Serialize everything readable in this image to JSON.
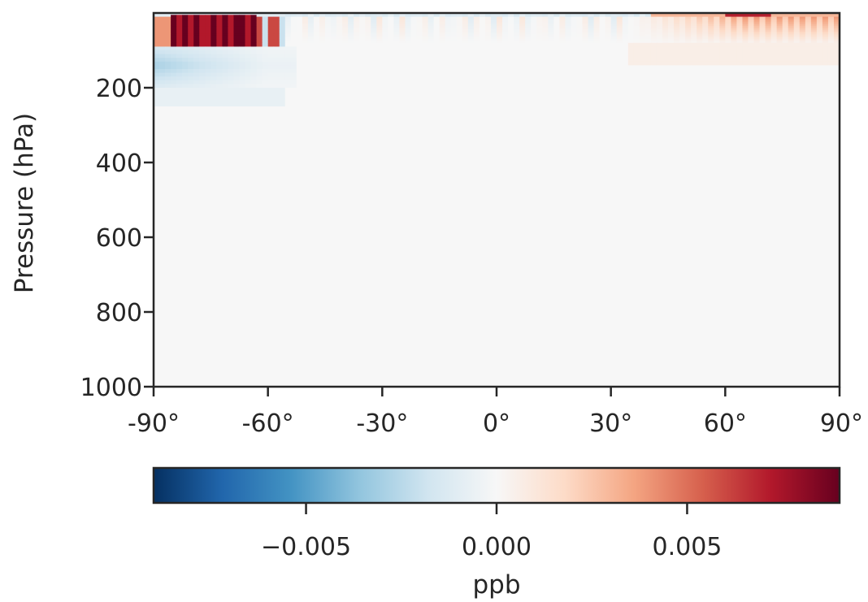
{
  "chart_data": {
    "type": "heatmap",
    "title": "",
    "xlabel": "",
    "ylabel": "Pressure (hPa)",
    "x_ticks": [
      -90,
      -60,
      -30,
      0,
      30,
      60,
      90
    ],
    "x_tick_labels": [
      "-90°",
      "-60°",
      "-30°",
      "0°",
      "30°",
      "60°",
      "90°"
    ],
    "xlim": [
      -90,
      90
    ],
    "y_ticks": [
      200,
      400,
      600,
      800,
      1000
    ],
    "y_tick_labels": [
      "200",
      "400",
      "600",
      "800",
      "1000"
    ],
    "ylim": [
      1000,
      0
    ],
    "y_inverted": true,
    "grid": false,
    "colormap": "RdBu_r",
    "colormap_stops": [
      "#053061",
      "#2166ac",
      "#4393c3",
      "#92c5de",
      "#d1e5f0",
      "#f7f7f7",
      "#fddbc7",
      "#f4a582",
      "#d6604d",
      "#b2182b",
      "#67001f"
    ],
    "colorbar": {
      "label": "ppb",
      "range": [
        -0.009,
        0.009
      ],
      "ticks": [
        -0.005,
        0.0,
        0.005
      ],
      "tick_labels": [
        "−0.005",
        "0.000",
        "0.005"
      ],
      "placement": "bottom"
    },
    "features": [
      {
        "lat_range": [
          -86,
          -63
        ],
        "pressure_range": [
          5,
          90
        ],
        "value": 0.009
      },
      {
        "lat_range": [
          -90,
          -53
        ],
        "pressure_range": [
          100,
          200
        ],
        "value": -0.003
      },
      {
        "lat_range": [
          -90,
          90
        ],
        "pressure_range": [
          0,
          10
        ],
        "value": -0.002
      },
      {
        "lat_range": [
          35,
          90
        ],
        "pressure_range": [
          10,
          90
        ],
        "value": 0.004
      }
    ]
  }
}
